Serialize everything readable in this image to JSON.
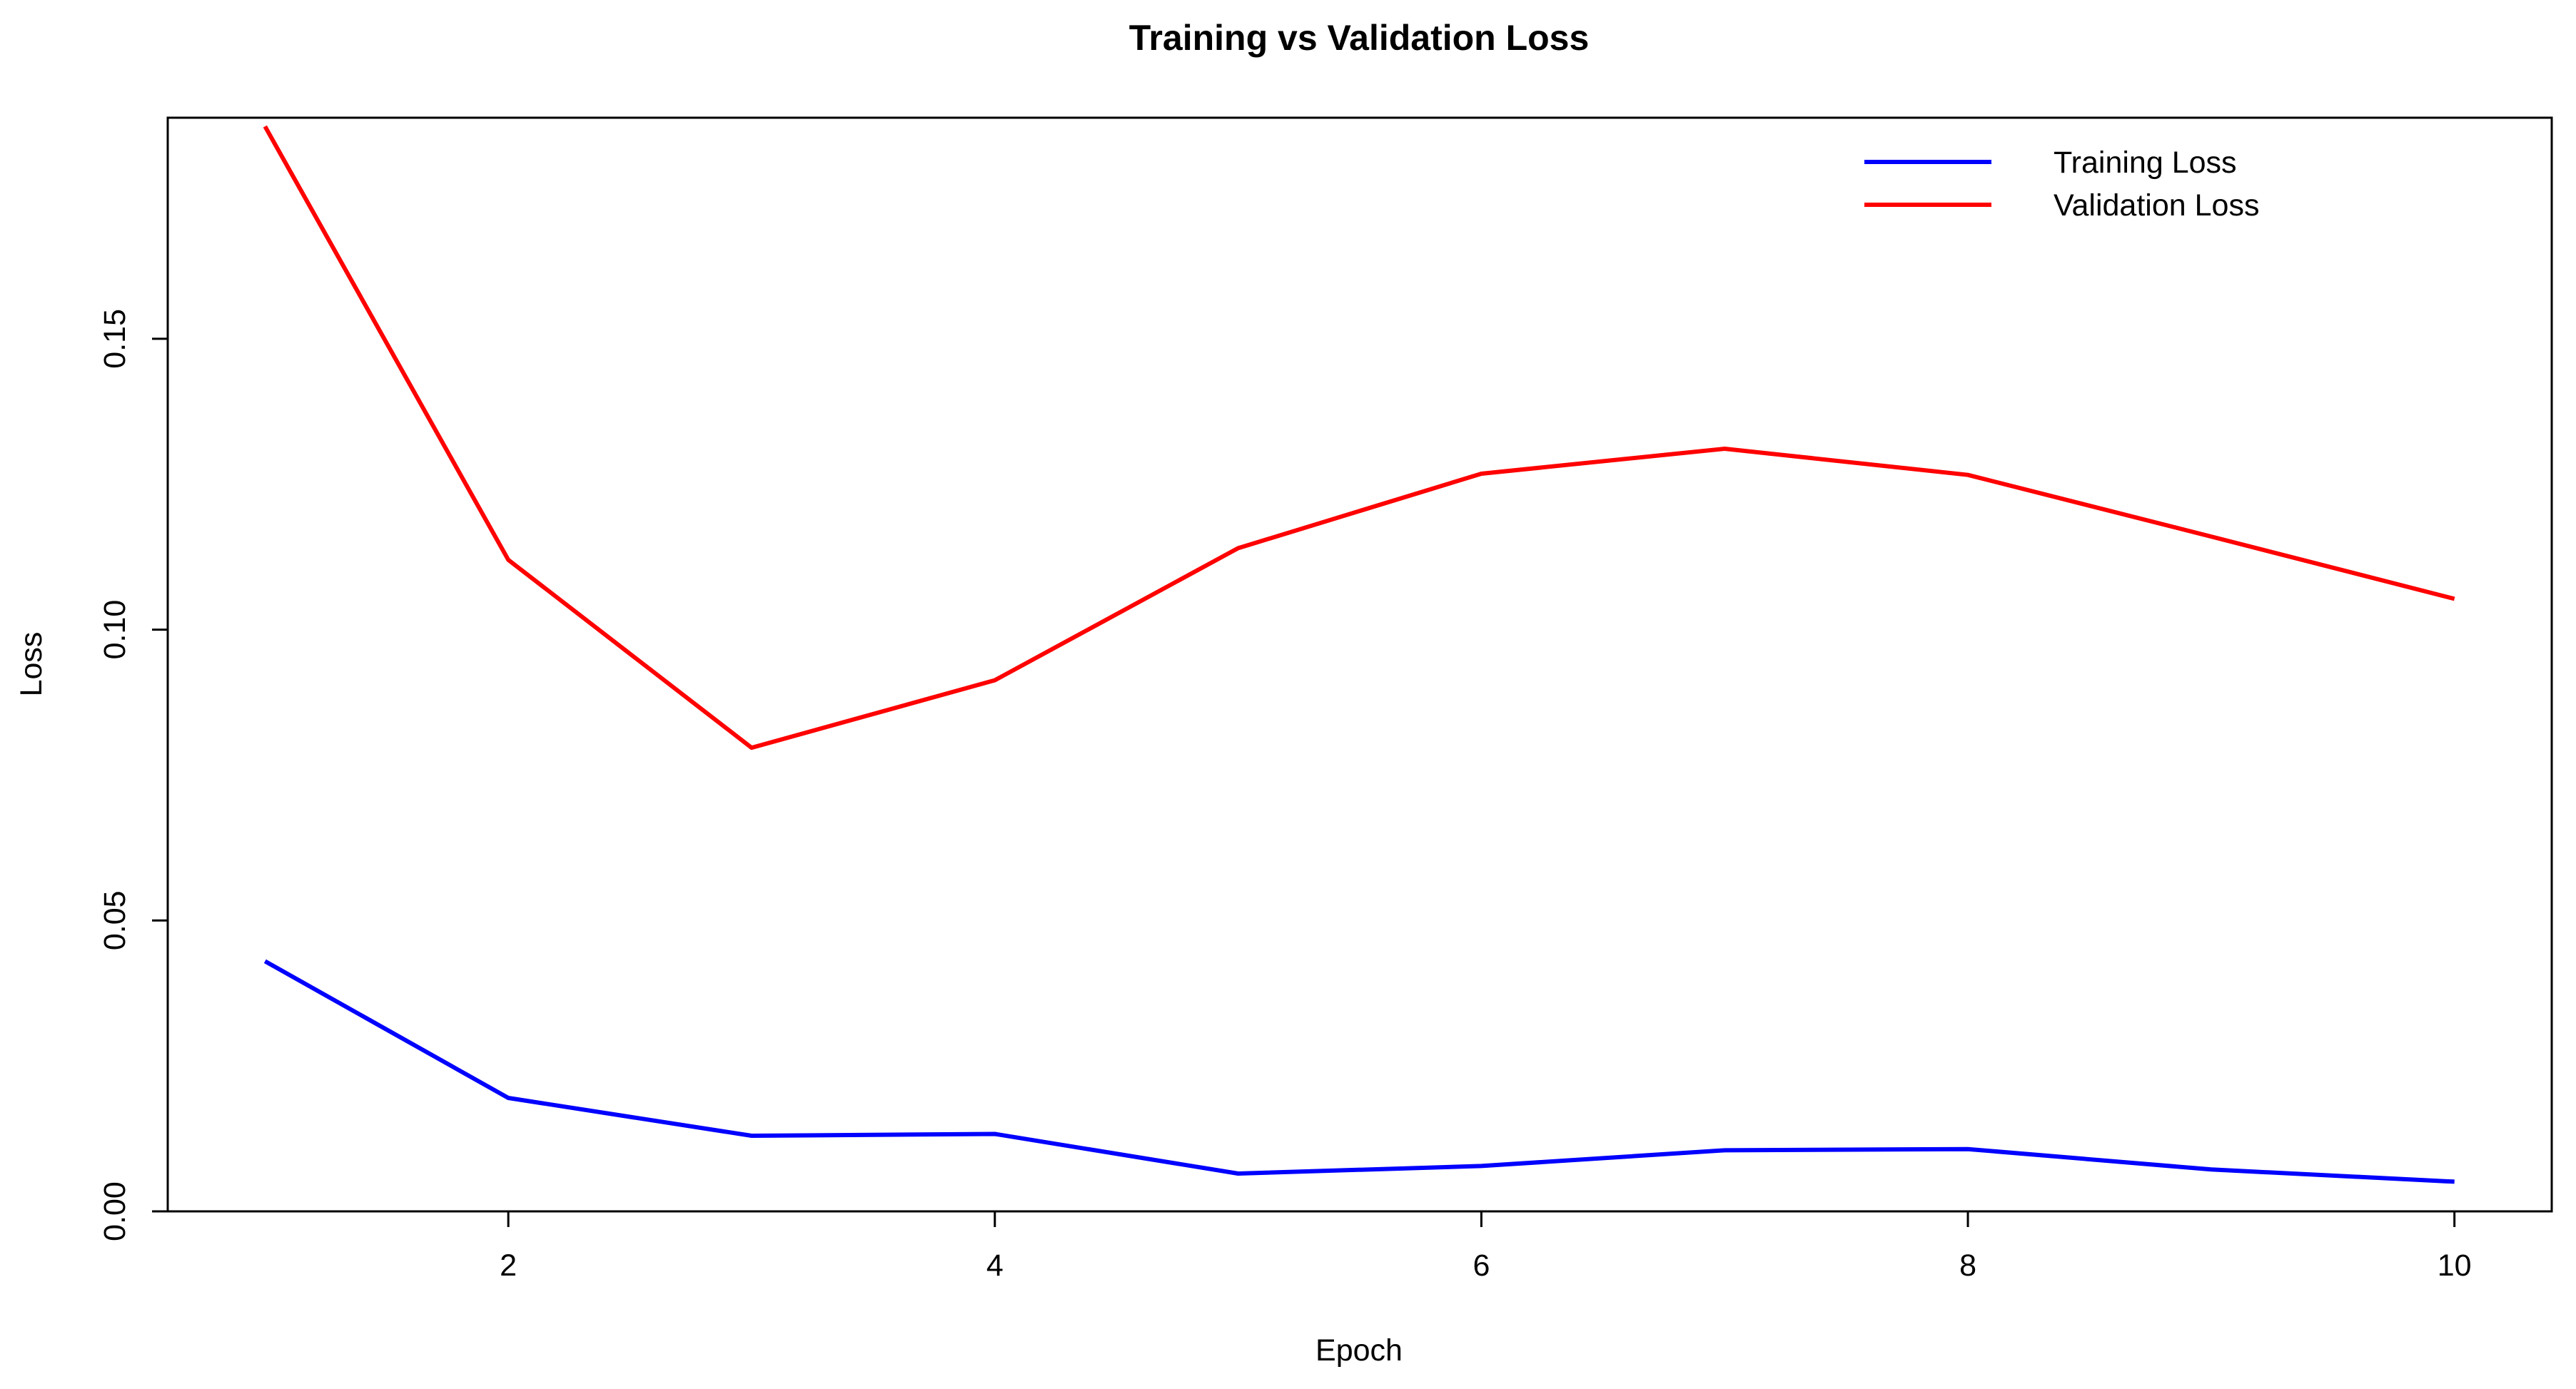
{
  "chart_data": {
    "type": "line",
    "title": "Training vs Validation Loss",
    "xlabel": "Epoch",
    "ylabel": "Loss",
    "x": [
      1,
      2,
      3,
      4,
      5,
      6,
      7,
      8,
      9,
      10
    ],
    "xlim": [
      0.6,
      10.4
    ],
    "ylim": [
      0.0,
      0.188
    ],
    "x_ticks": [
      2,
      4,
      6,
      8,
      10
    ],
    "x_tick_labels": [
      "2",
      "4",
      "6",
      "8",
      "10"
    ],
    "y_ticks": [
      0.0,
      0.05,
      0.1,
      0.15
    ],
    "y_tick_labels": [
      "0.00",
      "0.05",
      "0.10",
      "0.15"
    ],
    "grid": false,
    "legend_position": "top-right",
    "series": [
      {
        "name": "Training Loss",
        "color": "#0000ff",
        "values": [
          0.043,
          0.0195,
          0.013,
          0.0133,
          0.0065,
          0.0078,
          0.0105,
          0.0107,
          0.0072,
          0.0051
        ]
      },
      {
        "name": "Validation Loss",
        "color": "#ff0000",
        "values": [
          0.1865,
          0.112,
          0.0797,
          0.0913,
          0.114,
          0.1268,
          0.1311,
          0.1266,
          0.116,
          0.1053
        ]
      }
    ]
  }
}
